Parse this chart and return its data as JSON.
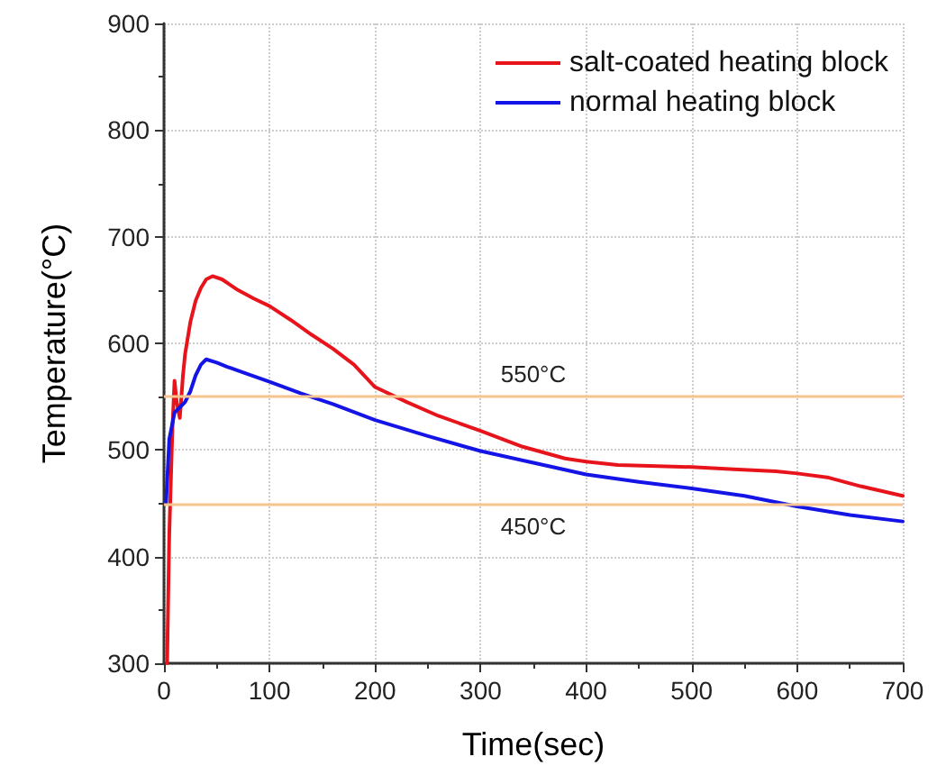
{
  "chart_data": {
    "type": "line",
    "xlabel": "Time(sec)",
    "ylabel": "Temperature(°C)",
    "xlim": [
      0,
      700
    ],
    "xticks": [
      0,
      100,
      200,
      300,
      400,
      500,
      600,
      700
    ],
    "ylim": [
      300,
      900
    ],
    "yticks": [
      300,
      400,
      500,
      600,
      700,
      800,
      900
    ],
    "grid": true,
    "legend": "top right",
    "marker": "none",
    "line_style": "solid",
    "series": [
      {
        "name": "salt-coated heating block",
        "color": "#e8141c",
        "x": [
          3,
          5,
          8,
          10,
          12,
          15,
          18,
          20,
          25,
          30,
          35,
          40,
          46,
          55,
          70,
          85,
          100,
          120,
          140,
          160,
          180,
          200,
          230,
          260,
          300,
          340,
          380,
          400,
          430,
          460,
          500,
          540,
          580,
          600,
          630,
          660,
          700
        ],
        "values": [
          300,
          420,
          520,
          565,
          545,
          530,
          570,
          590,
          620,
          640,
          652,
          660,
          663,
          660,
          650,
          642,
          635,
          622,
          608,
          595,
          580,
          559,
          545,
          532,
          518,
          503,
          492,
          489,
          486,
          485,
          484,
          482,
          480,
          478,
          474,
          466,
          457
        ]
      },
      {
        "name": "normal heating block",
        "color": "#1414e6",
        "x": [
          2,
          5,
          8,
          10,
          15,
          20,
          25,
          30,
          35,
          40,
          50,
          60,
          80,
          100,
          130,
          160,
          200,
          250,
          300,
          350,
          400,
          450,
          500,
          550,
          600,
          650,
          700
        ],
        "values": [
          450,
          510,
          525,
          535,
          540,
          545,
          555,
          570,
          580,
          585,
          582,
          578,
          571,
          564,
          553,
          543,
          528,
          513,
          499,
          488,
          477,
          470,
          464,
          457,
          447,
          439,
          433
        ]
      }
    ],
    "ref_lines": [
      {
        "axis": "y",
        "value": 550,
        "label": "550°C",
        "color": "#f7c38e"
      },
      {
        "axis": "y",
        "value": 450,
        "label": "450°C",
        "color": "#f7c38e"
      }
    ]
  }
}
